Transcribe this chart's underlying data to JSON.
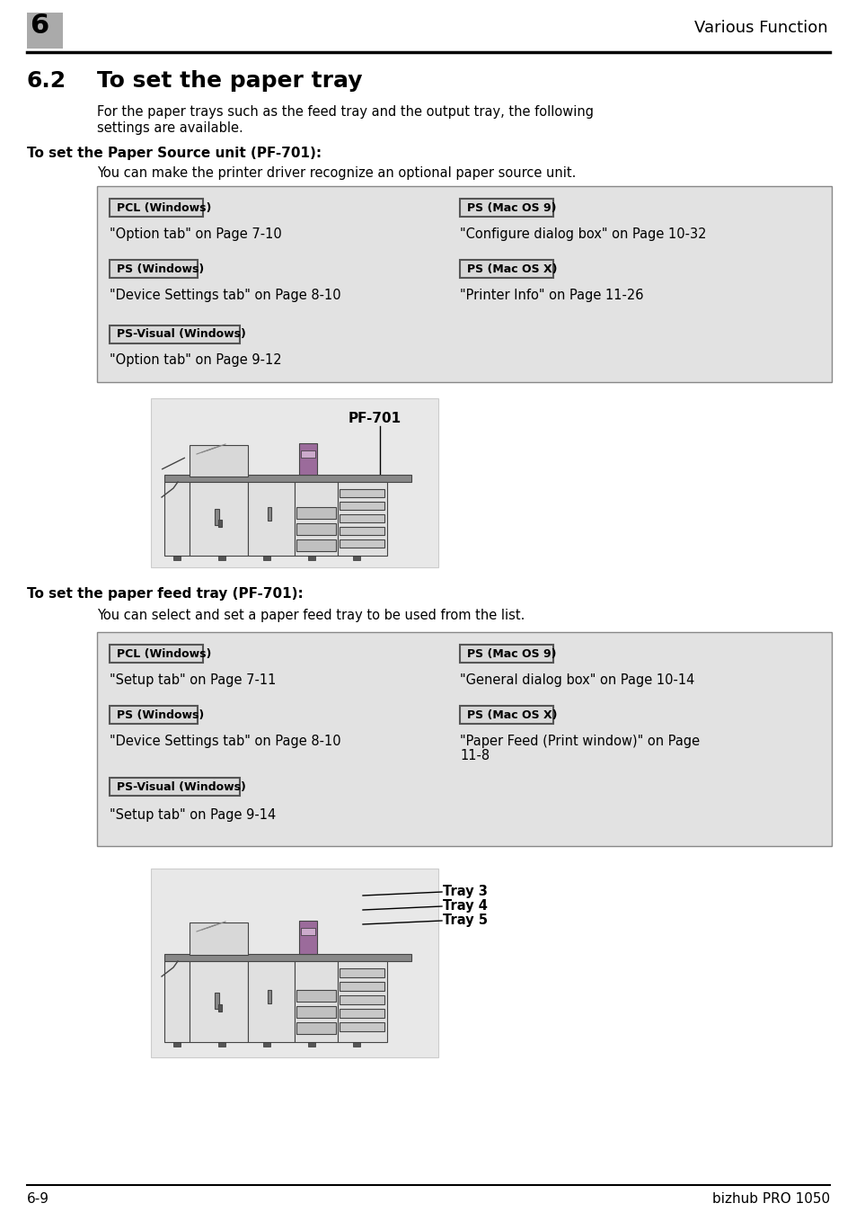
{
  "page_bg": "#ffffff",
  "header_bg": "#aaaaaa",
  "header_number": "6",
  "header_title": "Various Function",
  "section_number": "6.2",
  "section_title": "To set the paper tray",
  "intro_text1": "For the paper trays such as the feed tray and the output tray, the following",
  "intro_text2": "settings are available.",
  "subsection1_title": "To set the Paper Source unit (PF-701):",
  "subsection1_desc": "You can make the printer driver recognize an optional paper source unit.",
  "table_bg": "#e2e2e2",
  "table_border": "#888888",
  "row1_left_label": "PCL (Windows)",
  "row1_right_label": "PS (Mac OS 9)",
  "row1_left_text": "\"Option tab\" on Page 7-10",
  "row1_right_text": "\"Configure dialog box\" on Page 10-32",
  "row2_left_label": "PS (Windows)",
  "row2_right_label": "PS (Mac OS X)",
  "row2_left_text": "\"Device Settings tab\" on Page 8-10",
  "row2_right_text": "\"Printer Info\" on Page 11-26",
  "row3_label": "PS-Visual (Windows)",
  "row3_text": "\"Option tab\" on Page 9-12",
  "image1_label": "PF-701",
  "subsection2_title": "To set the paper feed tray (PF-701):",
  "subsection2_desc": "You can select and set a paper feed tray to be used from the list.",
  "t2_row1_left_label": "PCL (Windows)",
  "t2_row1_right_label": "PS (Mac OS 9)",
  "t2_row1_left_text": "\"Setup tab\" on Page 7-11",
  "t2_row1_right_text": "\"General dialog box\" on Page 10-14",
  "t2_row2_left_label": "PS (Windows)",
  "t2_row2_right_label": "PS (Mac OS X)",
  "t2_row2_left_text": "\"Device Settings tab\" on Page 8-10",
  "t2_row2_right_text_line1": "\"Paper Feed (Print window)\" on Page",
  "t2_row2_right_text_line2": "11-8",
  "t2_row3_label": "PS-Visual (Windows)",
  "t2_row3_text": "\"Setup tab\" on Page 9-14",
  "tray_labels": [
    "Tray 3",
    "Tray 4",
    "Tray 5"
  ],
  "footer_left": "6-9",
  "footer_right": "bizhub PRO 1050",
  "label_bg": "#d8d8d8",
  "label_border": "#555555",
  "tray_purple": "#9b6b9b",
  "img_bg": "#e8e8e8",
  "printer_light": "#e0e0e0",
  "printer_mid": "#c8c8c8",
  "printer_dark_line": "#444444"
}
